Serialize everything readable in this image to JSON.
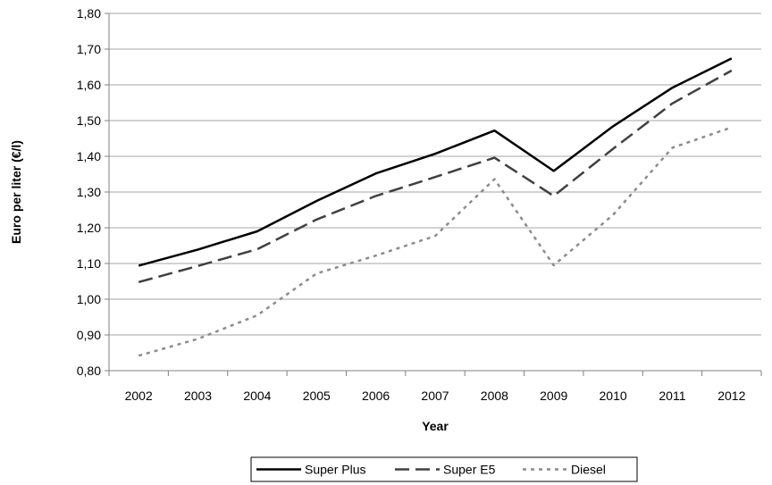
{
  "chart_data": {
    "type": "line",
    "title": "",
    "xlabel": "Year",
    "ylabel": "Euro per liter (€/l)",
    "categories": [
      "2002",
      "2003",
      "2004",
      "2005",
      "2006",
      "2007",
      "2008",
      "2009",
      "2010",
      "2011",
      "2012"
    ],
    "ylim": [
      0.8,
      1.8
    ],
    "yticks": [
      "0,80",
      "0,90",
      "1,00",
      "1,10",
      "1,20",
      "1,30",
      "1,40",
      "1,50",
      "1,60",
      "1,70",
      "1,80"
    ],
    "grid": true,
    "legend_position": "bottom",
    "series": [
      {
        "name": "Super Plus",
        "style": "solid",
        "color": "#000000",
        "values": [
          1.094,
          1.139,
          1.19,
          1.275,
          1.352,
          1.407,
          1.472,
          1.359,
          1.484,
          1.592,
          1.674
        ]
      },
      {
        "name": "Super E5",
        "style": "dashed",
        "color": "#404040",
        "values": [
          1.048,
          1.093,
          1.14,
          1.223,
          1.289,
          1.342,
          1.396,
          1.289,
          1.421,
          1.548,
          1.64
        ]
      },
      {
        "name": "Diesel",
        "style": "dotted",
        "color": "#8c8c8c",
        "values": [
          0.842,
          0.889,
          0.955,
          1.072,
          1.122,
          1.177,
          1.336,
          1.095,
          1.236,
          1.424,
          1.481
        ]
      }
    ]
  }
}
